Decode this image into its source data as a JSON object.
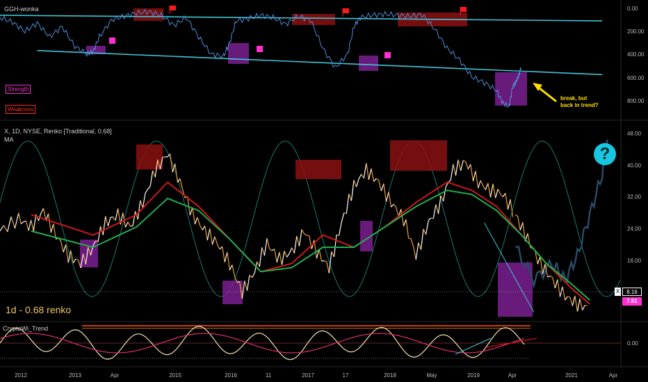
{
  "panes": {
    "top": {
      "title": "GGH-wonka",
      "legend": [
        {
          "label": "Strength",
          "color": "#ff2fd0"
        },
        {
          "label": "Weakness",
          "color": "#ff2b2b"
        }
      ],
      "annotation": [
        "break, but",
        "back in trend?"
      ]
    },
    "main": {
      "title": "X, 1D, NYSE, Renko [Traditional, 0.68]",
      "subtitle": "MA",
      "caption": "1d - 0.68 renko",
      "question_mark": "?",
      "badge_x_label": "X",
      "badge_x_value": "8.16",
      "badge_ma_value": "7.51"
    },
    "bottom": {
      "title": "CryptoWi_Trend"
    }
  },
  "chart_data": [
    {
      "type": "line",
      "pane": "top",
      "title": "GGH-wonka",
      "y_ticks": [
        "0.00",
        "200.00",
        "400.00",
        "600.00",
        "800.00"
      ],
      "ylim": [
        0,
        900
      ],
      "inverted_y": true,
      "series": [
        {
          "name": "",
          "color": "#4f8fd8",
          "x": [
            0,
            0.02,
            0.04,
            0.06,
            0.08,
            0.1,
            0.12,
            0.14,
            0.15,
            0.16,
            0.18,
            0.2,
            0.22,
            0.24,
            0.26,
            0.28,
            0.3,
            0.32,
            0.34,
            0.36,
            0.37,
            0.38,
            0.4,
            0.42,
            0.44,
            0.46,
            0.48,
            0.5,
            0.52,
            0.54,
            0.56,
            0.57,
            0.58,
            0.6,
            0.62,
            0.64,
            0.66,
            0.68,
            0.7,
            0.72,
            0.74,
            0.76,
            0.78,
            0.8,
            0.81,
            0.82,
            0.825,
            0.83,
            0.835,
            0.84
          ],
          "y": [
            80,
            120,
            200,
            130,
            250,
            160,
            330,
            400,
            380,
            250,
            100,
            70,
            40,
            30,
            60,
            150,
            80,
            250,
            400,
            420,
            300,
            110,
            90,
            60,
            80,
            140,
            70,
            100,
            350,
            520,
            400,
            160,
            80,
            60,
            50,
            60,
            70,
            55,
            180,
            350,
            450,
            600,
            650,
            720,
            830,
            860,
            700,
            650,
            600,
            500
          ]
        }
      ],
      "trend_lines": [
        {
          "x": [
            0,
            0.97
          ],
          "y": [
            60,
            110
          ]
        },
        {
          "x": [
            0.06,
            0.97
          ],
          "y": [
            370,
            580
          ]
        }
      ]
    },
    {
      "type": "line",
      "pane": "main",
      "title": "X, 1D, NYSE, Renko [Traditional, 0.68]",
      "y_ticks": [
        "48.00",
        "40.00",
        "32.00",
        "24.00",
        "16.00",
        "8.00"
      ],
      "ylim": [
        8,
        50
      ],
      "series": [
        {
          "name": "",
          "color": "#f0b040",
          "x": [
            0,
            0.03,
            0.05,
            0.07,
            0.09,
            0.11,
            0.13,
            0.15,
            0.17,
            0.19,
            0.21,
            0.23,
            0.25,
            0.27,
            0.29,
            0.31,
            0.33,
            0.35,
            0.37,
            0.39,
            0.41,
            0.43,
            0.45,
            0.47,
            0.49,
            0.51,
            0.53,
            0.55,
            0.57,
            0.59,
            0.61,
            0.63,
            0.65,
            0.67,
            0.69,
            0.71,
            0.73,
            0.75,
            0.77,
            0.79,
            0.81,
            0.83
          ],
          "y": [
            26,
            29,
            27,
            31,
            25,
            20,
            18,
            22,
            28,
            30,
            27,
            33,
            41,
            45,
            38,
            30,
            26,
            23,
            18,
            11,
            16,
            23,
            19,
            21,
            26,
            21,
            17,
            28,
            37,
            41,
            38,
            33,
            29,
            20,
            28,
            33,
            41,
            43,
            38,
            36,
            35,
            30
          ]
        },
        {
          "name": "",
          "color": "#f0b040",
          "x": [
            0.83,
            0.85,
            0.87,
            0.89,
            0.91,
            0.93,
            0.95
          ],
          "y": [
            30,
            24,
            18,
            14,
            10,
            8,
            7
          ]
        }
      ],
      "ma_red": {
        "x": [
          0.05,
          0.15,
          0.22,
          0.27,
          0.32,
          0.37,
          0.42,
          0.47,
          0.52,
          0.57,
          0.62,
          0.67,
          0.72,
          0.76,
          0.8,
          0.84,
          0.88,
          0.92,
          0.95
        ],
        "y": [
          30,
          25,
          30,
          38,
          32,
          24,
          16,
          18,
          25,
          22,
          27,
          33,
          38,
          36,
          32,
          25,
          18,
          12,
          8
        ]
      },
      "ma_green": {
        "x": [
          0.05,
          0.15,
          0.22,
          0.27,
          0.32,
          0.37,
          0.42,
          0.47,
          0.52,
          0.57,
          0.62,
          0.67,
          0.72,
          0.76,
          0.8,
          0.84,
          0.88,
          0.92,
          0.95
        ],
        "y": [
          26,
          22,
          27,
          34,
          31,
          24,
          16,
          17,
          22,
          22,
          27,
          32,
          36,
          35,
          31,
          25,
          18,
          13,
          9
        ]
      },
      "projection": {
        "x": [
          0.83,
          0.86,
          0.89,
          0.91,
          0.93,
          0.95,
          0.97,
          0.98
        ],
        "y": [
          22,
          14,
          18,
          14,
          20,
          30,
          40,
          49
        ]
      }
    },
    {
      "type": "line",
      "pane": "bottom",
      "title": "CryptoWi_Trend",
      "y_ticks": [
        "0.00"
      ],
      "series": [
        {
          "name": "",
          "color": "#f5e6b0"
        },
        {
          "name": "",
          "color": "#e0306a"
        }
      ]
    }
  ],
  "x_axis": {
    "ticks": [
      "2012",
      "2013",
      "Apr",
      "2015",
      "2016",
      "11",
      "2017",
      "17",
      "2018",
      "May",
      "2019",
      "Apr",
      "2021",
      "Apr"
    ]
  },
  "colors": {
    "background": "#000000",
    "trendline": "#3fc7d9",
    "weakness_box": "#8a1010",
    "strength_box": "#7a2090",
    "flag": "#ff1a1a",
    "marker": "#ff2fd0",
    "renko_up": "#ffffff",
    "renko_down": "#f0a030",
    "ma_red": "#d01818",
    "ma_green": "#20b050",
    "cycle": "#1a8a7a",
    "projection": "#2a4a66",
    "question_bg": "#18c6e0",
    "annotation": "#ffe000"
  }
}
